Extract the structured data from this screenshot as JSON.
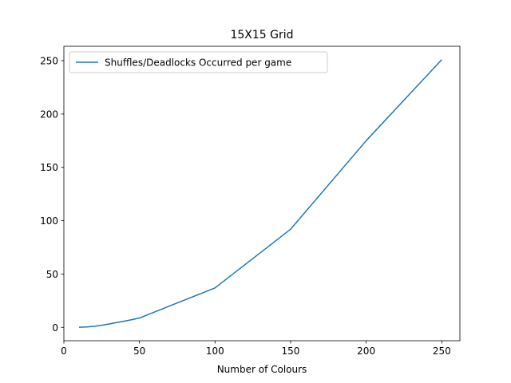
{
  "chart_data": {
    "type": "line",
    "title": "15X15 Grid",
    "xlabel": "Number of Colours",
    "ylabel": "",
    "xlim": [
      0,
      262
    ],
    "ylim": [
      -12.5,
      263.5
    ],
    "x_ticks": [
      0,
      50,
      100,
      150,
      200,
      250
    ],
    "y_ticks": [
      0,
      50,
      100,
      150,
      200,
      250
    ],
    "grid": false,
    "legend_position": "top-left",
    "series": [
      {
        "name": "Shuffles/Deadlocks Occurred per game",
        "color": "#1f77b4",
        "x": [
          10,
          15,
          20,
          25,
          30,
          35,
          40,
          45,
          50,
          100,
          150,
          200,
          250
        ],
        "y": [
          0.1,
          0.4,
          1.0,
          2.0,
          3.2,
          4.5,
          5.8,
          7.2,
          8.8,
          37,
          92,
          175,
          251
        ]
      }
    ]
  }
}
